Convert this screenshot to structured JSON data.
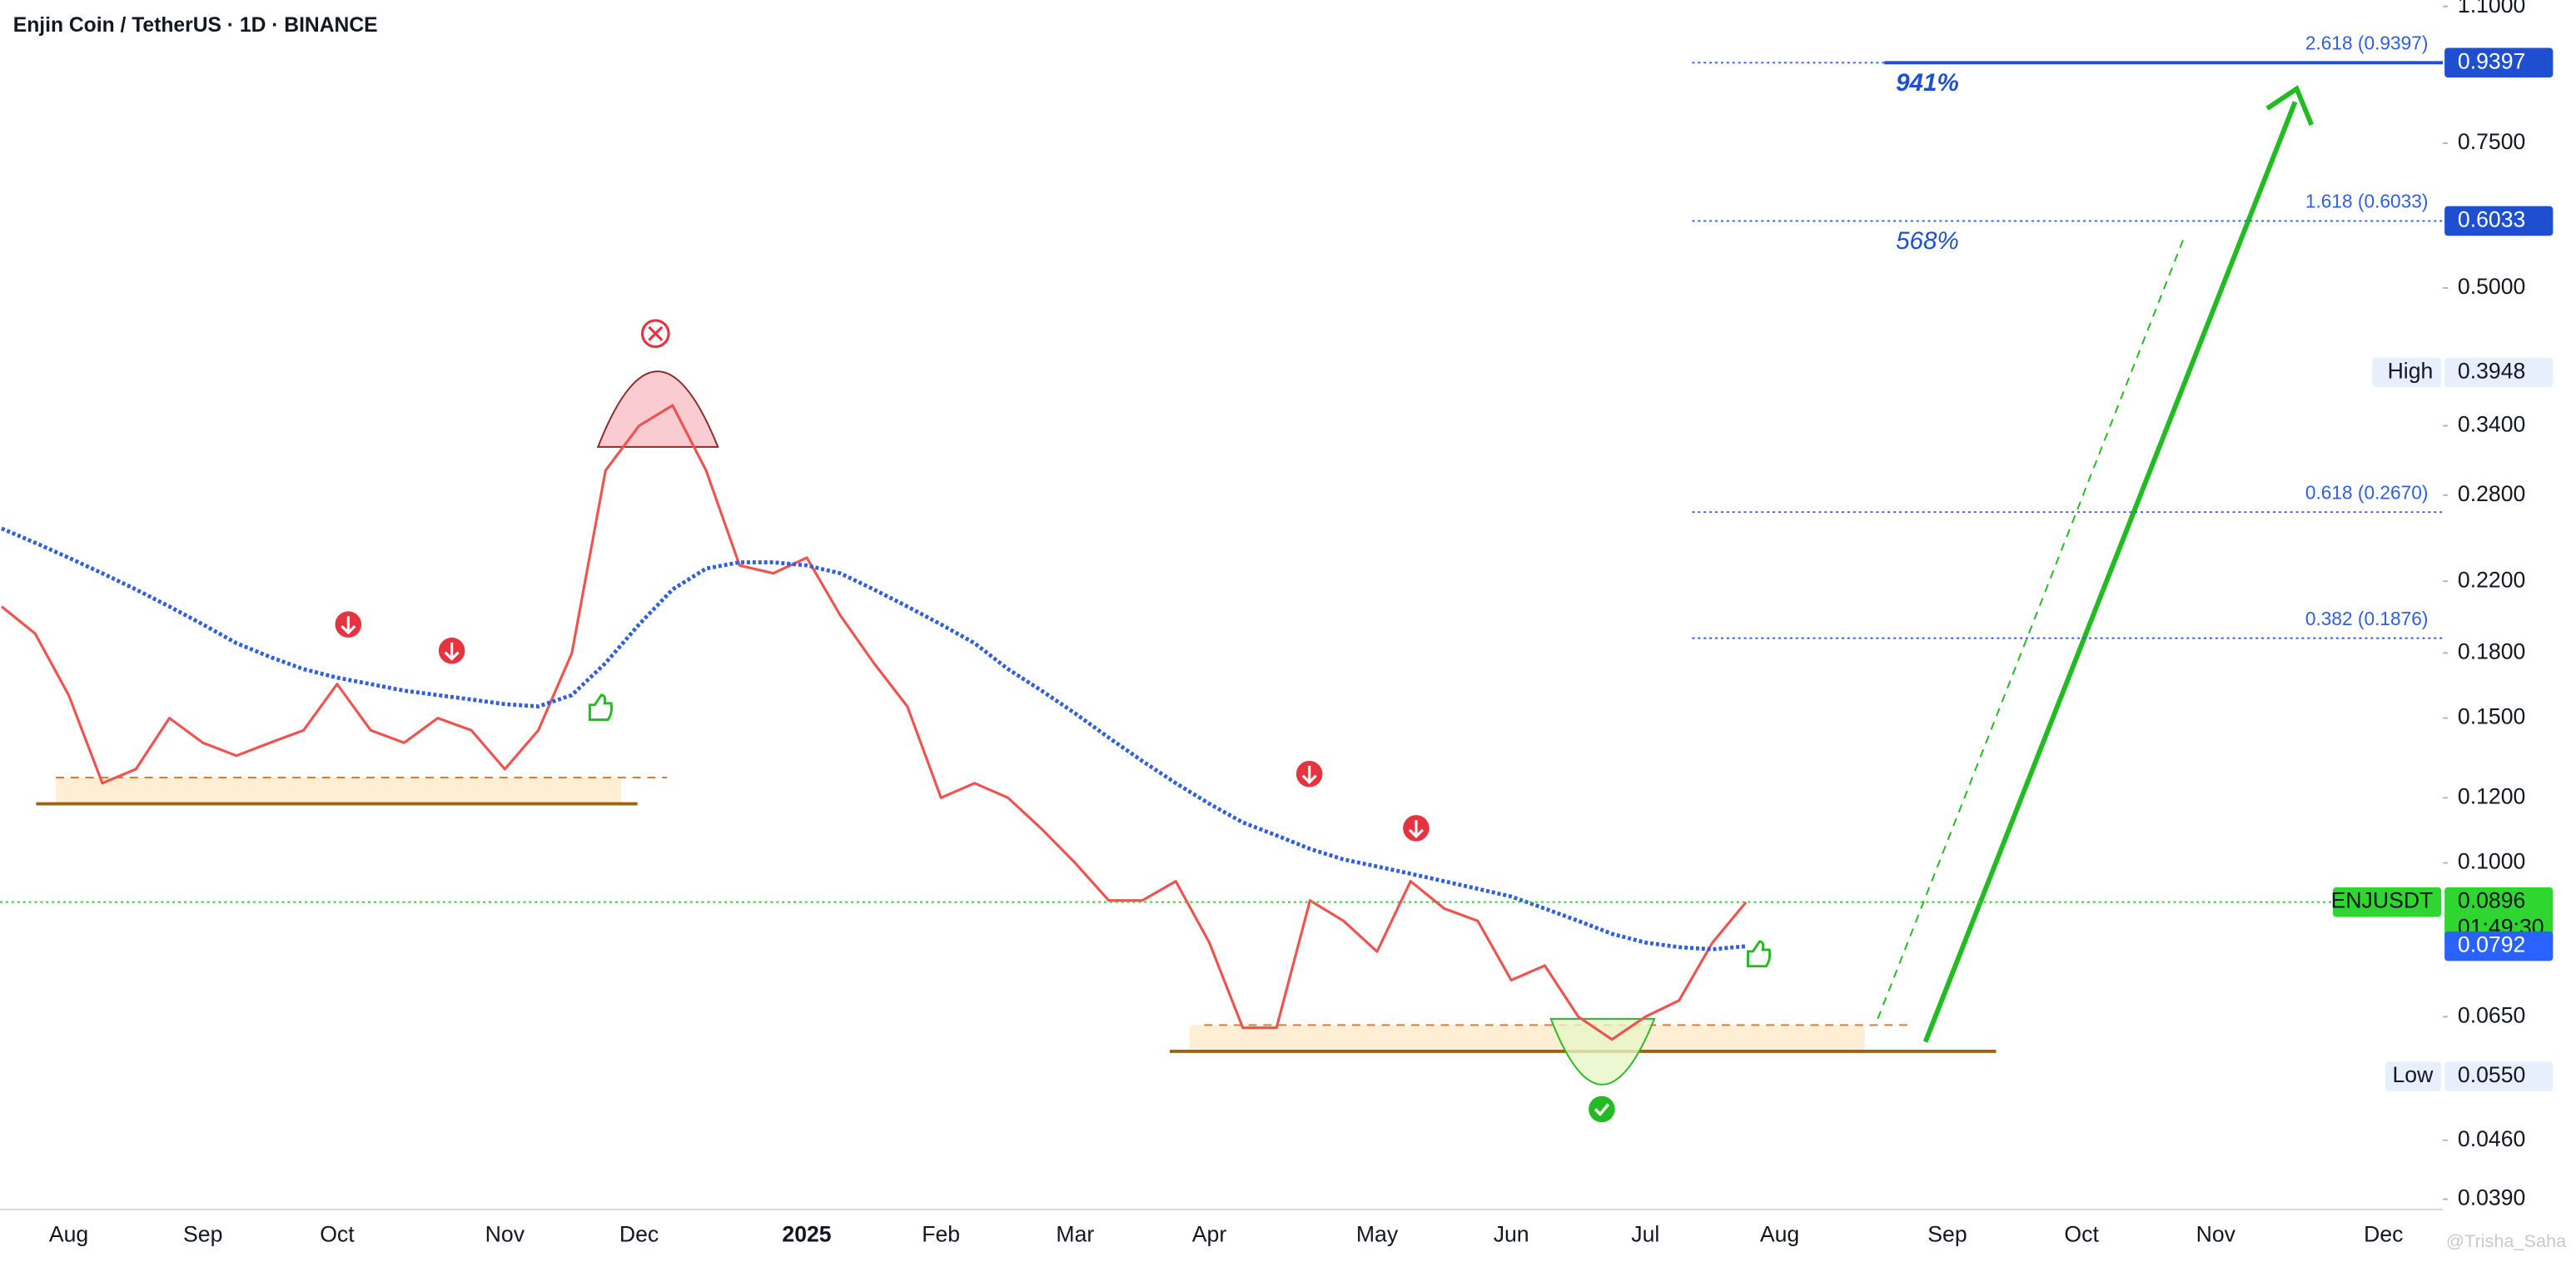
{
  "chart_data": {
    "type": "line",
    "title": "Enjin Coin / TetherUS · 1D · BINANCE",
    "watermark": "@Trisha_Saha",
    "log_scale": true,
    "grid": false,
    "categories": [
      null,
      null,
      "Aug",
      null,
      null,
      null,
      "Sep",
      null,
      null,
      null,
      "Oct",
      null,
      null,
      null,
      null,
      "Nov",
      null,
      null,
      null,
      "Dec",
      null,
      null,
      null,
      null,
      "2025",
      null,
      null,
      null,
      "Feb",
      null,
      null,
      null,
      "Mar",
      null,
      null,
      null,
      "Apr",
      null,
      null,
      null,
      null,
      "May",
      null,
      null,
      null,
      "Jun",
      null,
      null,
      null,
      "Jul",
      null,
      null,
      null,
      "Aug",
      null,
      null,
      null,
      null,
      "Sep",
      null,
      null,
      null,
      "Oct",
      null,
      null,
      null,
      "Nov",
      null,
      null,
      null,
      null,
      "Dec",
      null
    ],
    "series": [
      {
        "name": "ENJUSDT",
        "color": "#ef5350",
        "width": 1.6,
        "dash": false,
        "values": [
          0.205,
          0.19,
          0.16,
          0.125,
          0.13,
          0.15,
          0.14,
          0.135,
          0.14,
          0.145,
          0.165,
          0.145,
          0.14,
          0.15,
          0.145,
          0.13,
          0.145,
          0.18,
          0.3,
          0.34,
          0.36,
          0.3,
          0.23,
          0.225,
          0.235,
          0.2,
          0.175,
          0.155,
          0.12,
          0.125,
          0.12,
          0.11,
          0.1,
          0.09,
          0.09,
          0.095,
          0.08,
          0.063,
          0.063,
          0.09,
          0.085,
          0.078,
          0.095,
          0.088,
          0.085,
          0.072,
          0.075,
          0.065,
          0.061,
          0.065,
          0.068,
          0.08,
          0.0896,
          null,
          null,
          null,
          null,
          null,
          null,
          null,
          null,
          null,
          null,
          null,
          null,
          null,
          null,
          null,
          null,
          null,
          null,
          null,
          null
        ]
      },
      {
        "name": "MA",
        "color": "#2f5fe0",
        "width": 2.4,
        "dash": true,
        "values": [
          0.255,
          0.245,
          0.235,
          0.225,
          0.215,
          0.205,
          0.195,
          0.185,
          0.178,
          0.172,
          0.168,
          0.165,
          0.162,
          0.16,
          0.158,
          0.156,
          0.155,
          0.16,
          0.175,
          0.195,
          0.215,
          0.228,
          0.232,
          0.232,
          0.23,
          0.225,
          0.215,
          0.205,
          0.195,
          0.185,
          0.172,
          0.162,
          0.152,
          0.142,
          0.133,
          0.125,
          0.118,
          0.112,
          0.108,
          0.104,
          0.101,
          0.099,
          0.097,
          0.095,
          0.093,
          0.091,
          0.088,
          0.085,
          0.082,
          0.08,
          0.079,
          0.0785,
          0.0792,
          null,
          null,
          null,
          null,
          null,
          null,
          null,
          null,
          null,
          null,
          null,
          null,
          null,
          null,
          null,
          null,
          null,
          null,
          null,
          null
        ]
      }
    ],
    "ylim": [
      0.0379,
      1.12
    ],
    "yticks": [
      {
        "value": 1.1,
        "label": "1.1000"
      },
      {
        "value": 0.75,
        "label": "0.7500"
      },
      {
        "value": 0.5,
        "label": "0.5000"
      },
      {
        "value": 0.34,
        "label": "0.3400"
      },
      {
        "value": 0.28,
        "label": "0.2800"
      },
      {
        "value": 0.22,
        "label": "0.2200"
      },
      {
        "value": 0.18,
        "label": "0.1800"
      },
      {
        "value": 0.15,
        "label": "0.1500"
      },
      {
        "value": 0.12,
        "label": "0.1200"
      },
      {
        "value": 0.1,
        "label": "0.1000"
      },
      {
        "value": 0.065,
        "label": "0.0650"
      },
      {
        "value": 0.046,
        "label": "0.0460"
      },
      {
        "value": 0.039,
        "label": "0.0390"
      }
    ],
    "fib_levels": [
      {
        "label": "2.618 (0.9397)",
        "value": 0.9397,
        "gain": "941%"
      },
      {
        "label": "1.618 (0.6033)",
        "value": 0.6033,
        "gain": "568%"
      },
      {
        "label": "0.618 (0.2670)",
        "value": 0.267
      },
      {
        "label": "0.382 (0.1876)",
        "value": 0.1876
      }
    ],
    "support_levels": [
      0.118,
      0.059
    ],
    "price_tags": [
      {
        "value": 0.9397,
        "label": "0.9397",
        "color": "#1e4fd1"
      },
      {
        "value": 0.6033,
        "label": "0.6033",
        "color": "#1e4fd1"
      },
      {
        "name": "High",
        "value": 0.3948,
        "label": "0.3948",
        "color": "#e6effb"
      },
      {
        "name": "ENJUSDT",
        "value": 0.0896,
        "label": "0.0896",
        "countdown": "01:49:30",
        "color": "#2fd62f"
      },
      {
        "value": 0.0792,
        "label": "0.0792",
        "color": "#2962ff"
      },
      {
        "name": "Low",
        "value": 0.055,
        "label": "0.0550",
        "color": "#e6effb"
      }
    ]
  }
}
